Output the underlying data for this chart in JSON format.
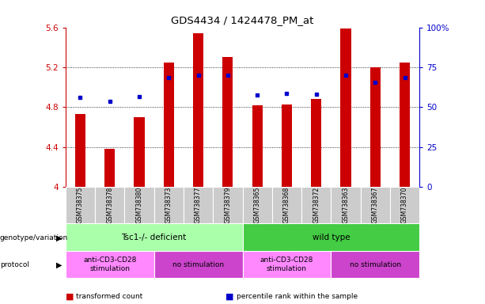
{
  "title": "GDS4434 / 1424478_PM_at",
  "samples": [
    "GSM738375",
    "GSM738378",
    "GSM738380",
    "GSM738373",
    "GSM738377",
    "GSM738379",
    "GSM738365",
    "GSM738368",
    "GSM738372",
    "GSM738363",
    "GSM738367",
    "GSM738370"
  ],
  "bar_values": [
    4.73,
    4.38,
    4.7,
    5.25,
    5.54,
    5.3,
    4.82,
    4.83,
    4.88,
    5.59,
    5.2,
    5.25
  ],
  "percentile_values": [
    4.9,
    4.86,
    4.91,
    5.1,
    5.12,
    5.12,
    4.92,
    4.94,
    4.93,
    5.12,
    5.05,
    5.1
  ],
  "bar_color": "#cc0000",
  "dot_color": "#0000cc",
  "ymin": 4.0,
  "ymax": 5.6,
  "yticks": [
    4.0,
    4.4,
    4.8,
    5.2,
    5.6
  ],
  "ytick_labels": [
    "4",
    "4.4",
    "4.8",
    "5.2",
    "5.6"
  ],
  "right_yticks_val": [
    0,
    25,
    50,
    75,
    100
  ],
  "right_ytick_labels": [
    "0",
    "25",
    "50",
    "75",
    "100%"
  ],
  "grid_lines": [
    4.4,
    4.8,
    5.2
  ],
  "genotype_groups": [
    {
      "label": "Tsc1-/- deficient",
      "start": 0,
      "end": 6,
      "color": "#aaffaa"
    },
    {
      "label": "wild type",
      "start": 6,
      "end": 12,
      "color": "#44cc44"
    }
  ],
  "protocol_groups": [
    {
      "label": "anti-CD3-CD28\nstimulation",
      "start": 0,
      "end": 3,
      "color": "#ff88ff"
    },
    {
      "label": "no stimulation",
      "start": 3,
      "end": 6,
      "color": "#cc44cc"
    },
    {
      "label": "anti-CD3-CD28\nstimulation",
      "start": 6,
      "end": 9,
      "color": "#ff88ff"
    },
    {
      "label": "no stimulation",
      "start": 9,
      "end": 12,
      "color": "#cc44cc"
    }
  ],
  "left_labels": [
    "genotype/variation",
    "protocol"
  ],
  "legend_items": [
    {
      "label": "transformed count",
      "color": "#cc0000"
    },
    {
      "label": "percentile rank within the sample",
      "color": "#0000cc"
    }
  ],
  "bar_width": 0.35,
  "axis_label_color_left": "#cc0000",
  "axis_label_color_right": "#0000cc",
  "xtick_bg": "#cccccc"
}
